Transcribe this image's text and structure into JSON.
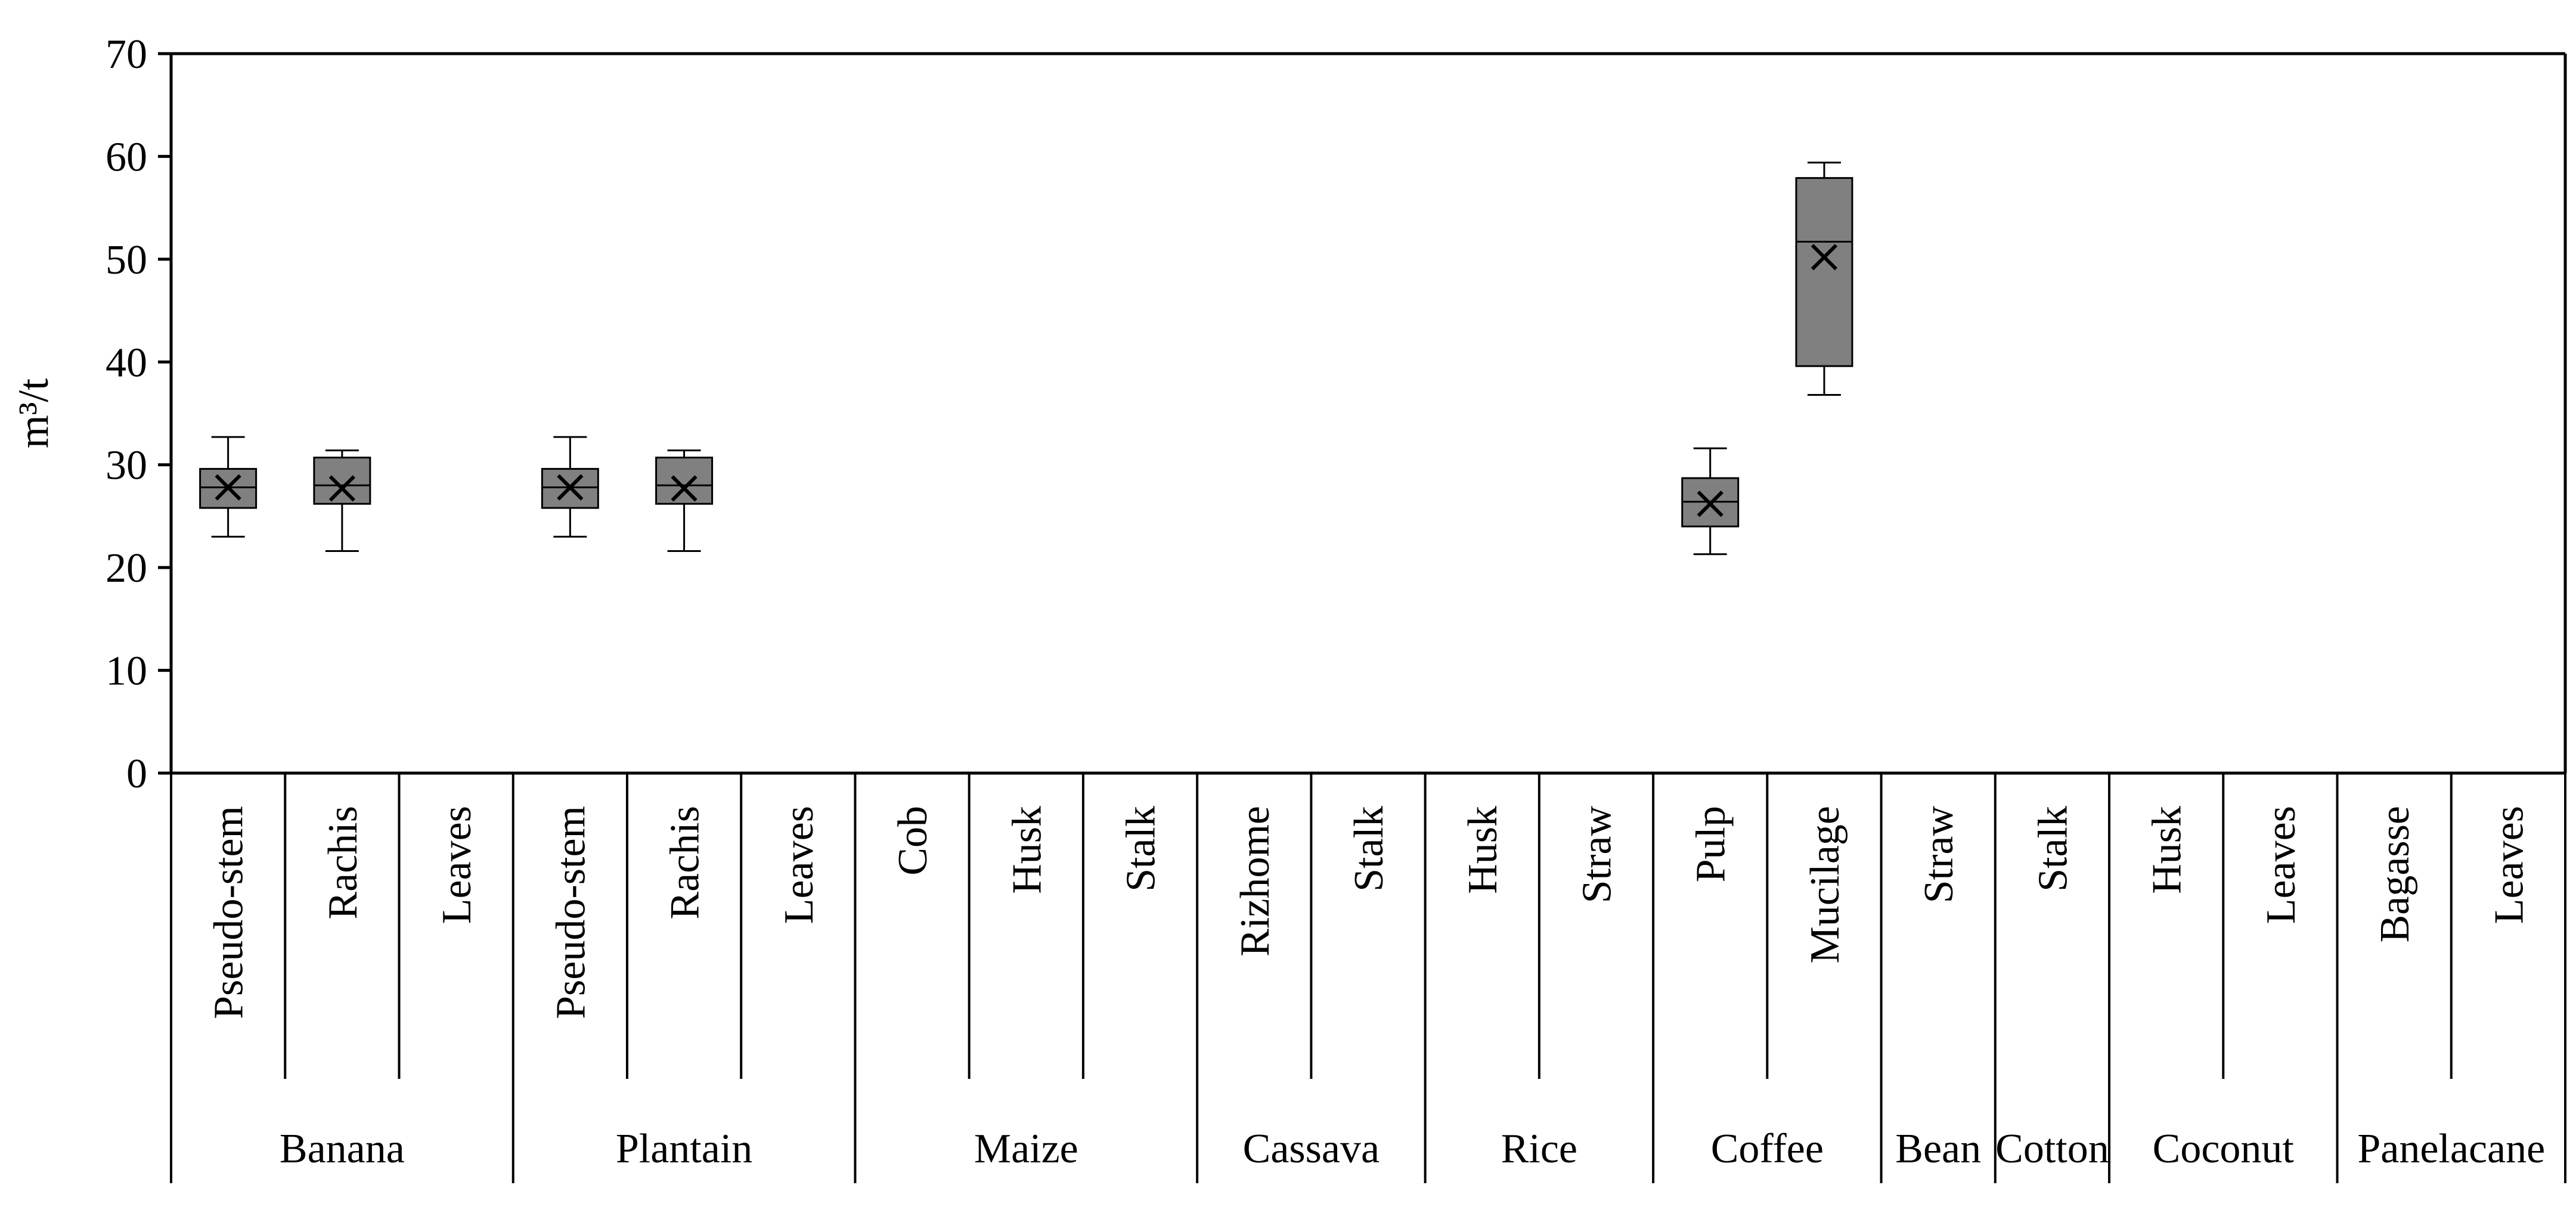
{
  "chart_data": {
    "type": "box",
    "ylabel": "m³/t",
    "ylim": [
      0,
      70
    ],
    "yticks": [
      0,
      10,
      20,
      30,
      40,
      50,
      60,
      70
    ],
    "grid": false,
    "legend": "none",
    "box_color": "#808080",
    "groups": [
      {
        "name": "Banana",
        "categories": [
          "Pseudo-stem",
          "Rachis",
          "Leaves"
        ]
      },
      {
        "name": "Plantain",
        "categories": [
          "Pseudo-stem",
          "Rachis",
          "Leaves"
        ]
      },
      {
        "name": "Maize",
        "categories": [
          "Cob",
          "Husk",
          "Stalk"
        ]
      },
      {
        "name": "Cassava",
        "categories": [
          "Rizhome",
          "Stalk"
        ]
      },
      {
        "name": "Rice",
        "categories": [
          "Husk",
          "Straw"
        ]
      },
      {
        "name": "Coffee",
        "categories": [
          "Pulp",
          "Mucilage"
        ]
      },
      {
        "name": "Bean",
        "categories": [
          "Straw"
        ]
      },
      {
        "name": "Cotton",
        "categories": [
          "Stalk"
        ]
      },
      {
        "name": "Coconut",
        "categories": [
          "Husk",
          "Leaves"
        ]
      },
      {
        "name": "Panelacane",
        "categories": [
          "Bagasse",
          "Leaves"
        ]
      }
    ],
    "boxes": [
      {
        "index": 0,
        "group": "Banana",
        "category": "Pseudo-stem",
        "min": 23.0,
        "q1": 25.8,
        "median": 27.8,
        "q3": 29.6,
        "max": 32.7,
        "mean": 27.8
      },
      {
        "index": 1,
        "group": "Banana",
        "category": "Rachis",
        "min": 21.6,
        "q1": 26.2,
        "median": 28.0,
        "q3": 30.7,
        "max": 31.4,
        "mean": 27.7
      },
      {
        "index": 3,
        "group": "Plantain",
        "category": "Pseudo-stem",
        "min": 23.0,
        "q1": 25.8,
        "median": 27.8,
        "q3": 29.6,
        "max": 32.7,
        "mean": 27.8
      },
      {
        "index": 4,
        "group": "Plantain",
        "category": "Rachis",
        "min": 21.6,
        "q1": 26.2,
        "median": 28.0,
        "q3": 30.7,
        "max": 31.4,
        "mean": 27.7
      },
      {
        "index": 13,
        "group": "Coffee",
        "category": "Pulp",
        "min": 21.3,
        "q1": 24.0,
        "median": 26.4,
        "q3": 28.7,
        "max": 31.6,
        "mean": 26.2
      },
      {
        "index": 14,
        "group": "Coffee",
        "category": "Mucilage",
        "min": 36.8,
        "q1": 39.6,
        "median": 51.7,
        "q3": 57.9,
        "max": 59.4,
        "mean": 50.2
      }
    ]
  }
}
